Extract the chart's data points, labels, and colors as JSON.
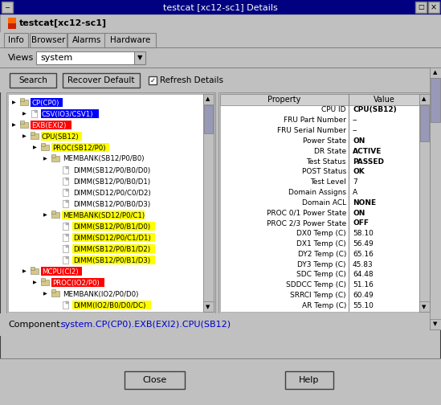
{
  "title": "testcat [xc12-sc1] Details",
  "subtitle": "testcat[xc12-sc1]",
  "tab_labels": [
    "Info",
    "Browser",
    "Alarms",
    "Hardware"
  ],
  "views_label": "Views",
  "views_value": "system",
  "btn_search": "Search",
  "btn_recover": "Recover Default",
  "chk_refresh": "Refresh Details",
  "component_label": "Component:",
  "component_value": "system.CP(CP0).EXB(EXI2).CPU(SB12)",
  "btn_close": "Close",
  "btn_help": "Help",
  "bg_color": "#c0c0c0",
  "tree_items": [
    {
      "indent": 1,
      "text": "CP(CP0)",
      "bg": "#0000ff",
      "fg": "#ffffff",
      "icon": "folder"
    },
    {
      "indent": 2,
      "text": "CSV(IO3/CSV1)",
      "bg": "#0000ff",
      "fg": "#ffffff",
      "icon": "file"
    },
    {
      "indent": 1,
      "text": "EXB(EXI2)",
      "bg": "#ff0000",
      "fg": "#ffffff",
      "icon": "folder"
    },
    {
      "indent": 2,
      "text": "CPU(SB12)",
      "bg": "#ffff00",
      "fg": "#000000",
      "icon": "folder"
    },
    {
      "indent": 3,
      "text": "PROC(SB12/P0)",
      "bg": "#ffff00",
      "fg": "#000000",
      "icon": "folder"
    },
    {
      "indent": 4,
      "text": "MEMBANK(SB12/P0/B0)",
      "bg": null,
      "fg": "#000000",
      "icon": "folder"
    },
    {
      "indent": 5,
      "text": "DIMM(SB12/P0/B0/D0)",
      "bg": null,
      "fg": "#000000",
      "icon": "file"
    },
    {
      "indent": 5,
      "text": "DIMM(SB12/P0/B0/D1)",
      "bg": null,
      "fg": "#000000",
      "icon": "file"
    },
    {
      "indent": 5,
      "text": "DIMM(SD12/P0/C0/D2)",
      "bg": null,
      "fg": "#000000",
      "icon": "file"
    },
    {
      "indent": 5,
      "text": "DIMM(SB12/P0/B0/D3)",
      "bg": null,
      "fg": "#000000",
      "icon": "file"
    },
    {
      "indent": 4,
      "text": "MEMBANK(SD12/P0/C1)",
      "bg": "#ffff00",
      "fg": "#000000",
      "icon": "folder"
    },
    {
      "indent": 5,
      "text": "DIMM(SB12/P0/B1/D0)",
      "bg": "#ffff00",
      "fg": "#000000",
      "icon": "file"
    },
    {
      "indent": 5,
      "text": "DIMM(SD12/P0/C1/D1)",
      "bg": "#ffff00",
      "fg": "#000000",
      "icon": "file"
    },
    {
      "indent": 5,
      "text": "DIMM(SB12/P0/B1/D2)",
      "bg": "#ffff00",
      "fg": "#000000",
      "icon": "file"
    },
    {
      "indent": 5,
      "text": "DIMM(SB12/P0/B1/D3)",
      "bg": "#ffff00",
      "fg": "#000000",
      "icon": "file"
    },
    {
      "indent": 2,
      "text": "MCPU(CI2)",
      "bg": "#ff0000",
      "fg": "#ffffff",
      "icon": "folder"
    },
    {
      "indent": 3,
      "text": "PROC(IO2/P0)",
      "bg": "#ff0000",
      "fg": "#ffffff",
      "icon": "folder"
    },
    {
      "indent": 4,
      "text": "MEMBANK(IO2/P0/D0)",
      "bg": null,
      "fg": "#000000",
      "icon": "folder"
    },
    {
      "indent": 5,
      "text": "DIMM(IO2/B0/D0/DC)",
      "bg": "#ffff00",
      "fg": "#000000",
      "icon": "file"
    }
  ],
  "prop_header": [
    "Property",
    "Value"
  ],
  "properties": [
    [
      "CPU ID",
      "CPU(SB12)"
    ],
    [
      "FRU Part Number",
      "--"
    ],
    [
      "FRU Serial Number",
      "--"
    ],
    [
      "Power State",
      "ON"
    ],
    [
      "DR State",
      "ACTIVE"
    ],
    [
      "Test Status",
      "PASSED"
    ],
    [
      "POST Status",
      "OK"
    ],
    [
      "Test Level",
      "7"
    ],
    [
      "Domain Assigns",
      "A"
    ],
    [
      "Domain ACL",
      "NONE"
    ],
    [
      "PROC 0/1 Power State",
      "ON"
    ],
    [
      "PROC 2/3 Power State",
      "OFF"
    ],
    [
      "DX0 Temp (C)",
      "58.10"
    ],
    [
      "DX1 Temp (C)",
      "56.49"
    ],
    [
      "DY2 Temp (C)",
      "65.16"
    ],
    [
      "DY3 Temp (C)",
      "45.83"
    ],
    [
      "SDC Temp (C)",
      "64.48"
    ],
    [
      "SDDCC Temp (C)",
      "51.16"
    ],
    [
      "SRRCI Temp (C)",
      "60.49"
    ],
    [
      "AR Temp (C)",
      "55.10"
    ]
  ]
}
